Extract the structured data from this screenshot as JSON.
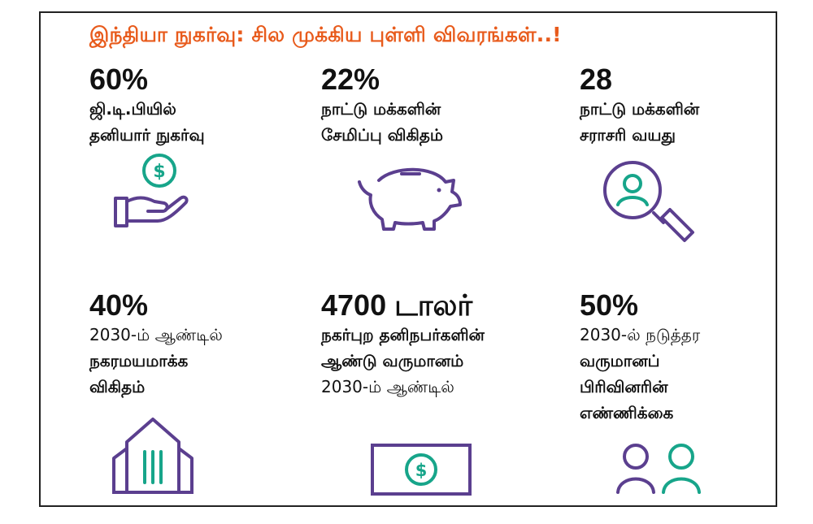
{
  "title": "இந்தியா நுகர்வு: சில முக்கிய புள்ளி விவரங்கள்..!",
  "stats": [
    {
      "value": "60%",
      "lines": [
        "ஜி.டி.பியில்",
        "தனியார் நுகர்வு"
      ],
      "icon": "hand-dollar-icon"
    },
    {
      "value": "22%",
      "lines": [
        "நாட்டு மக்களின்",
        "சேமிப்பு விகிதம்"
      ],
      "icon": "piggy-bank-icon"
    },
    {
      "value": "28",
      "lines": [
        "நாட்டு மக்களின்",
        "சராசரி வயது"
      ],
      "icon": "magnifier-person-icon"
    },
    {
      "value": "40%",
      "lines": [
        "2030-ம் ஆண்டில்",
        "நகரமயமாக்க",
        "விகிதம்"
      ],
      "icon": "building-icon"
    },
    {
      "value": "4700 டாலர்",
      "lines": [
        "நகர்புற தனிநபர்களின்",
        "ஆண்டு வருமானம்",
        "2030-ம் ஆண்டில்"
      ],
      "icon": "banknote-icon"
    },
    {
      "value": "50%",
      "lines": [
        "2030-ல் நடுத்தர",
        "வருமானப்",
        "பிரிவினரின்",
        "எண்ணிக்கை"
      ],
      "icon": "two-people-icon"
    }
  ],
  "colors": {
    "title": "#e85b1c",
    "icon_purple": "#5b3f8f",
    "icon_green": "#17a58a"
  }
}
